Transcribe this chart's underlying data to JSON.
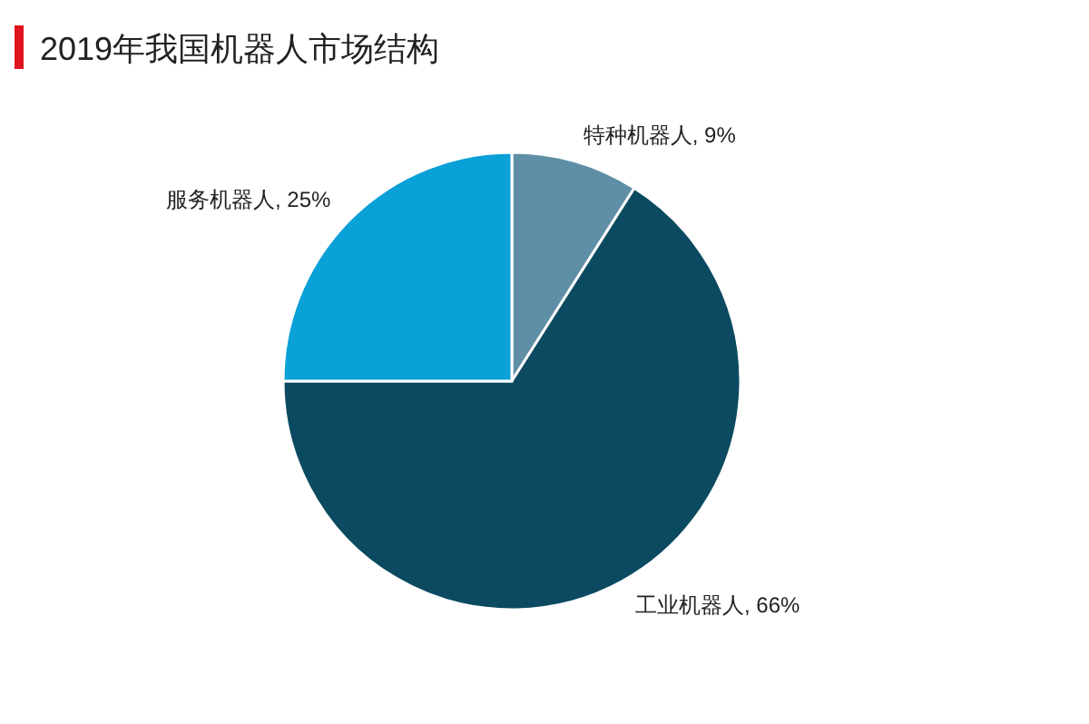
{
  "chart_data": {
    "type": "pie",
    "title": "2019年我国机器人市场结构",
    "categories": [
      "特种机器人",
      "工业机器人",
      "服务机器人"
    ],
    "values": [
      9,
      66,
      25
    ],
    "value_labels": [
      "9%",
      "66%",
      "25%"
    ],
    "colors": [
      "#5f8fa6",
      "#0b4a60",
      "#0aa0d8"
    ]
  }
}
